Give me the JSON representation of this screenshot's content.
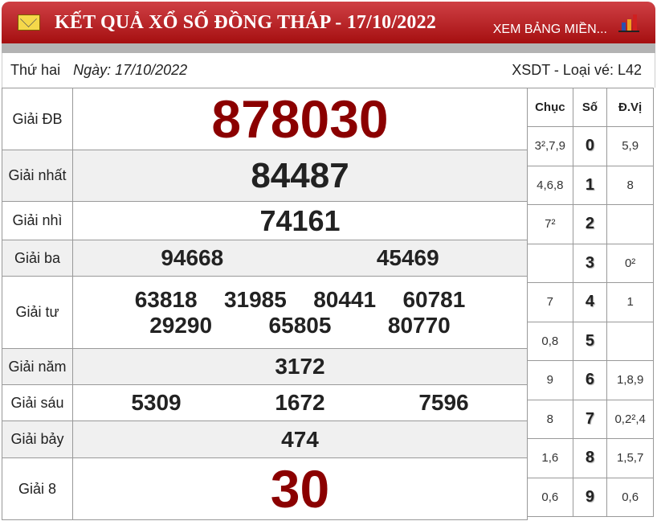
{
  "header": {
    "title": "KẾT QUẢ XỔ SỐ ĐỒNG THÁP - 17/10/2022",
    "link": "XEM BẢNG MIỀN...",
    "icons": [
      "envelope-icon",
      "bar-chart-icon"
    ]
  },
  "info": {
    "weekday": "Thứ hai",
    "date": "Ngày: 17/10/2022",
    "ticket": "XSDT - Loại vé: L42"
  },
  "prizes": [
    {
      "label": "Giải ĐB",
      "numbers": [
        "878030"
      ]
    },
    {
      "label": "Giải nhất",
      "numbers": [
        "84487"
      ]
    },
    {
      "label": "Giải nhì",
      "numbers": [
        "74161"
      ]
    },
    {
      "label": "Giải ba",
      "numbers": [
        "94668",
        "45469"
      ]
    },
    {
      "label": "Giải tư",
      "numbers": [
        "63818",
        "31985",
        "80441",
        "60781",
        "29290",
        "65805",
        "80770"
      ]
    },
    {
      "label": "Giải năm",
      "numbers": [
        "3172"
      ]
    },
    {
      "label": "Giải sáu",
      "numbers": [
        "5309",
        "1672",
        "7596"
      ]
    },
    {
      "label": "Giải bảy",
      "numbers": [
        "474"
      ]
    },
    {
      "label": "Giải 8",
      "numbers": [
        "30"
      ]
    }
  ],
  "loto": {
    "headers": [
      "Chục",
      "Số",
      "Đ.Vị"
    ],
    "rows": [
      [
        "3²,7,9",
        "0",
        "5,9"
      ],
      [
        "4,6,8",
        "1",
        "8"
      ],
      [
        "7²",
        "2",
        ""
      ],
      [
        "",
        "3",
        "0²"
      ],
      [
        "7",
        "4",
        "1"
      ],
      [
        "0,8",
        "5",
        ""
      ],
      [
        "9",
        "6",
        "1,8,9"
      ],
      [
        "8",
        "7",
        "0,2²,4"
      ],
      [
        "1,6",
        "8",
        "1,5,7"
      ],
      [
        "0,6",
        "9",
        "0,6"
      ]
    ]
  },
  "colors": {
    "banner": "#b31b1e",
    "special": "#8b0000"
  }
}
